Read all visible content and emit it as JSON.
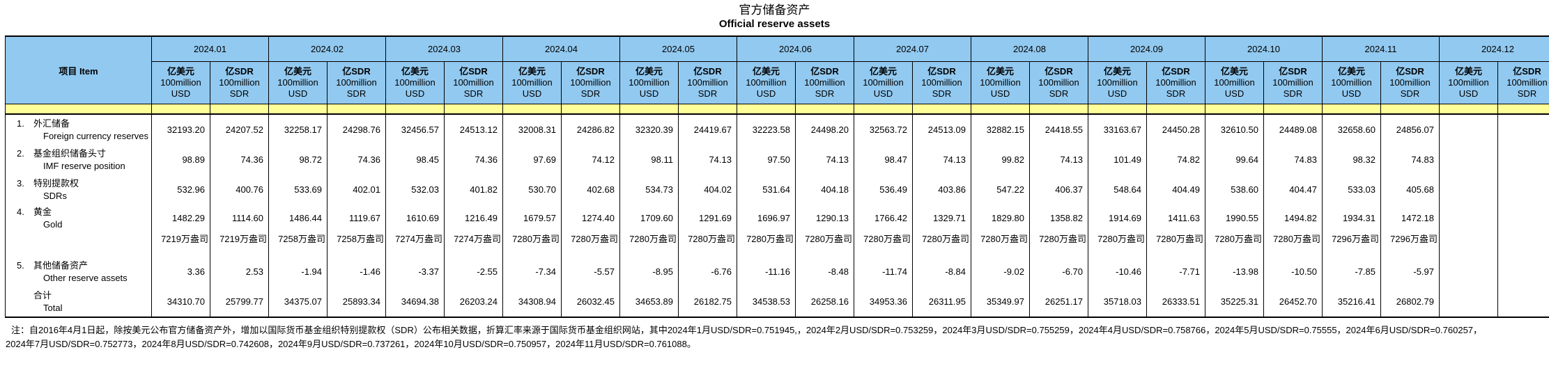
{
  "page_title": {
    "zh": "官方储备资产",
    "en": "Official reserve assets"
  },
  "colors": {
    "header_blue": "#92C9F0",
    "spacer_yellow": "#FFFF99",
    "border": "#000000"
  },
  "table": {
    "item_header": "项目  Item",
    "months": [
      "2024.01",
      "2024.02",
      "2024.03",
      "2024.04",
      "2024.05",
      "2024.06",
      "2024.07",
      "2024.08",
      "2024.09",
      "2024.10",
      "2024.11",
      "2024.12"
    ],
    "unit_usd": {
      "zh": "亿美元",
      "en": "100million USD"
    },
    "unit_sdr": {
      "zh": "亿SDR",
      "en": "100million SDR"
    },
    "rows": [
      {
        "no": "1.",
        "zh": "外汇储备",
        "en": "Foreign currency reserves",
        "values": [
          "32193.20",
          "24207.52",
          "32258.17",
          "24298.76",
          "32456.57",
          "24513.12",
          "32008.31",
          "24286.82",
          "32320.39",
          "24419.67",
          "32223.58",
          "24498.20",
          "32563.72",
          "24513.09",
          "32882.15",
          "24418.55",
          "33163.67",
          "24450.28",
          "32610.50",
          "24489.08",
          "32658.60",
          "24856.07",
          "",
          ""
        ]
      },
      {
        "no": "2.",
        "zh": "基金组织储备头寸",
        "en": "IMF reserve position",
        "values": [
          "98.89",
          "74.36",
          "98.72",
          "74.36",
          "98.45",
          "74.36",
          "97.69",
          "74.12",
          "98.11",
          "74.13",
          "97.50",
          "74.13",
          "98.47",
          "74.13",
          "99.82",
          "74.13",
          "101.49",
          "74.82",
          "99.64",
          "74.83",
          "98.32",
          "74.83",
          "",
          ""
        ]
      },
      {
        "no": "3.",
        "zh": "特别提款权",
        "en": "SDRs",
        "values": [
          "532.96",
          "400.76",
          "533.69",
          "402.01",
          "532.03",
          "401.82",
          "530.70",
          "402.68",
          "534.73",
          "404.02",
          "531.64",
          "404.18",
          "536.49",
          "403.86",
          "547.22",
          "406.37",
          "548.64",
          "404.49",
          "538.60",
          "404.47",
          "533.03",
          "405.68",
          "",
          ""
        ]
      },
      {
        "no": "4.",
        "zh": "黄金",
        "en": "Gold",
        "values": [
          "1482.29",
          "1114.60",
          "1486.44",
          "1119.67",
          "1610.69",
          "1216.49",
          "1679.57",
          "1274.40",
          "1709.60",
          "1291.69",
          "1696.97",
          "1290.13",
          "1766.42",
          "1329.71",
          "1829.80",
          "1358.82",
          "1914.69",
          "1411.63",
          "1990.55",
          "1494.82",
          "1934.31",
          "1472.18",
          "",
          ""
        ]
      },
      {
        "no": "5.",
        "zh": "其他储备资产",
        "en": "Other reserve assets",
        "values": [
          "3.36",
          "2.53",
          "-1.94",
          "-1.46",
          "-3.37",
          "-2.55",
          "-7.34",
          "-5.57",
          "-8.95",
          "-6.76",
          "-11.16",
          "-8.48",
          "-11.74",
          "-8.84",
          "-9.02",
          "-6.70",
          "-10.46",
          "-7.71",
          "-13.98",
          "-10.50",
          "-7.85",
          "-5.97",
          "",
          ""
        ]
      }
    ],
    "gold_ounces": [
      "7219万盎司",
      "7219万盎司",
      "7258万盎司",
      "7258万盎司",
      "7274万盎司",
      "7274万盎司",
      "7280万盎司",
      "7280万盎司",
      "7280万盎司",
      "7280万盎司",
      "7280万盎司",
      "7280万盎司",
      "7280万盎司",
      "7280万盎司",
      "7280万盎司",
      "7280万盎司",
      "7280万盎司",
      "7280万盎司",
      "7280万盎司",
      "7280万盎司",
      "7296万盎司",
      "7296万盎司",
      "",
      ""
    ],
    "total": {
      "zh": "合计",
      "en": "Total",
      "values": [
        "34310.70",
        "25799.77",
        "34375.07",
        "25893.34",
        "34694.38",
        "26203.24",
        "34308.94",
        "26032.45",
        "34653.89",
        "26182.75",
        "34538.53",
        "26258.16",
        "34953.36",
        "26311.95",
        "35349.97",
        "26251.17",
        "35718.03",
        "26333.51",
        "35225.31",
        "26452.70",
        "35216.41",
        "26802.79",
        "",
        ""
      ]
    }
  },
  "footnote": {
    "line1": "注：自2016年4月1日起，除按美元公布官方储备资产外，增加以国际货币基金组织特别提款权（SDR）公布相关数据，折算汇率来源于国际货币基金组织网站，其中2024年1月USD/SDR=0.751945,，2024年2月USD/SDR=0.753259，2024年3月USD/SDR=0.755259，2024年4月USD/SDR=0.758766，2024年5月USD/SDR=0.75555，2024年6月USD/SDR=0.760257，",
    "line2": "2024年7月USD/SDR=0.752773，2024年8月USD/SDR=0.742608，2024年9月USD/SDR=0.737261，2024年10月USD/SDR=0.750957，2024年11月USD/SDR=0.761088。"
  }
}
